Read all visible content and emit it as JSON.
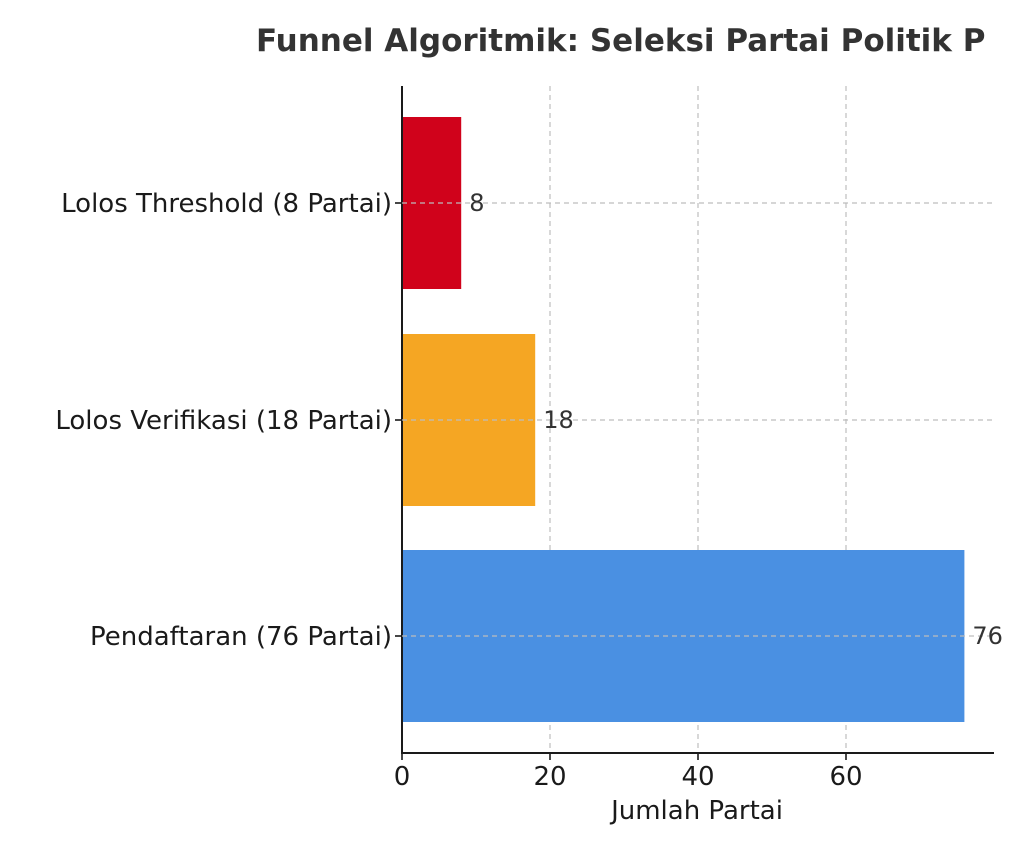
{
  "chart_data": {
    "type": "bar",
    "orientation": "horizontal",
    "title": "Funnel Algoritmik: Seleksi Partai Politik P",
    "xlabel": "Jumlah Partai",
    "ylabel": "",
    "categories": [
      "Pendaftaran (76 Partai)",
      "Lolos Verifikasi (18 Partai)",
      "Lolos Threshold (8 Partai)"
    ],
    "values": [
      76,
      18,
      8
    ],
    "data_labels": [
      "76",
      "18",
      "8"
    ],
    "colors": [
      "#4a90e2",
      "#f5a623",
      "#d0021b"
    ],
    "xlim": [
      0,
      80
    ],
    "xticks": [
      0,
      20,
      40,
      60
    ],
    "xtick_labels": [
      "0",
      "20",
      "40",
      "60"
    ],
    "grid": true,
    "legend": "none"
  }
}
